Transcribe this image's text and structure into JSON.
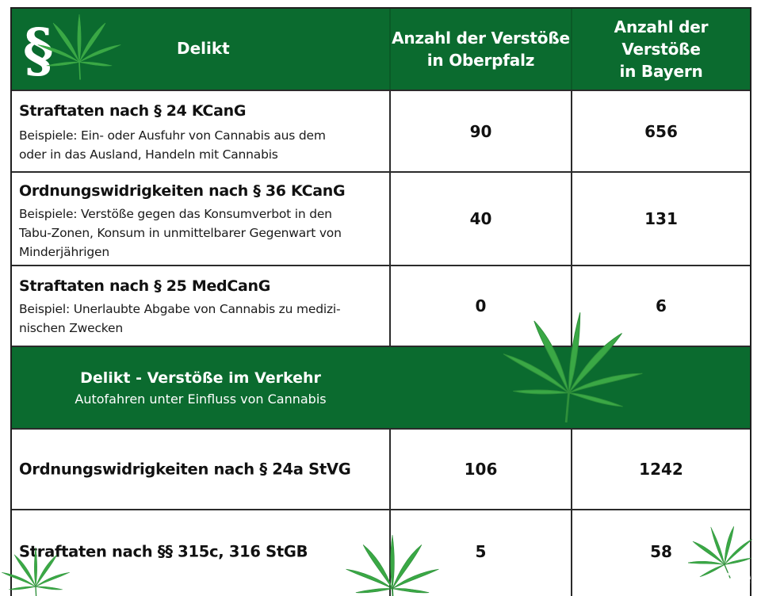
{
  "header": {
    "col1": "Delikt",
    "col2_line1": "Anzahl der Verstöße",
    "col2_line2": "in Oberpfalz",
    "col3_line1": "Anzahl der Verstöße",
    "col3_line2": "in Bayern",
    "symbol": "§"
  },
  "rows": [
    {
      "title": "Straftaten nach § 24 KCanG",
      "desc_lines": [
        "Beispiele: Ein- oder Ausfuhr von Cannabis aus dem",
        "oder in das Ausland, Handeln mit Cannabis"
      ],
      "oberpfalz": "90",
      "bayern": "656"
    },
    {
      "title": "Ordnungswidrigkeiten nach § 36 KCanG",
      "desc_lines": [
        "Beispiele: Verstöße gegen das Konsumverbot in den",
        "Tabu-Zonen, Konsum in unmittelbarer Gegenwart von",
        "Minderjährigen"
      ],
      "oberpfalz": "40",
      "bayern": "131"
    },
    {
      "title": "Straftaten nach § 25 MedCanG",
      "desc_lines": [
        "Beispiel: Unerlaubte Abgabe von Cannabis zu medizi-",
        "nischen Zwecken"
      ],
      "oberpfalz": "0",
      "bayern": "6"
    }
  ],
  "section": {
    "title": "Delikt - Verstöße im Verkehr",
    "subtitle": "Autofahren unter Einfluss von Cannabis"
  },
  "traffic_rows": [
    {
      "title": "Ordnungswidrigkeiten nach § 24a StVG",
      "oberpfalz": "106",
      "bayern": "1242"
    },
    {
      "title": "Straftaten nach §§ 315c, 316 StGB",
      "oberpfalz": "5",
      "bayern": "58"
    }
  ],
  "logo": "de",
  "colors": {
    "header_green": "#0b6b2f",
    "leaf_green": "#3aa845"
  },
  "icons": [
    "paragraph-icon",
    "cannabis-leaf-icon"
  ]
}
